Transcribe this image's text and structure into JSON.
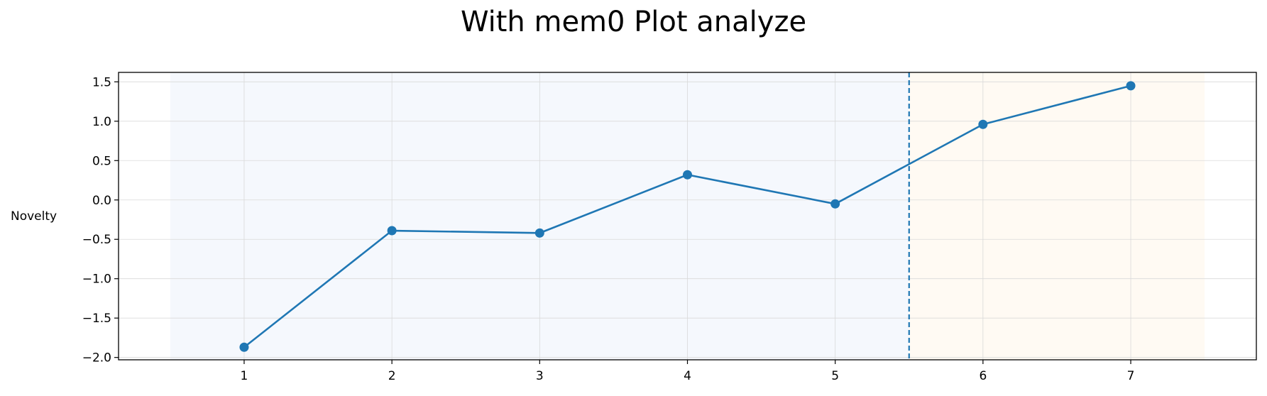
{
  "chart_data": {
    "type": "line",
    "title": "With mem0 Plot analyze",
    "xlabel": "",
    "ylabel": "Novelty",
    "x": [
      1,
      2,
      3,
      4,
      5,
      6,
      7
    ],
    "series": [
      {
        "values": [
          -1.87,
          -0.39,
          -0.42,
          0.32,
          -0.05,
          0.96,
          1.45
        ],
        "color": "#1f77b4"
      }
    ],
    "xlim": [
      0.15,
      7.85
    ],
    "ylim": [
      -2.03,
      1.62
    ],
    "xticks": [
      1,
      2,
      3,
      4,
      5,
      6,
      7
    ],
    "yticks": [
      1.5,
      1.0,
      0.5,
      0.0,
      -0.5,
      -1.0,
      -1.5,
      -2.0
    ],
    "ytick_labels": [
      "1.5",
      "1.0",
      "0.5",
      "0.0",
      "−0.5",
      "−1.0",
      "−1.5",
      "−2.0"
    ],
    "shaded_regions": [
      {
        "x_start": 0.5,
        "x_end": 5.5,
        "color": "#f5f8fd"
      },
      {
        "x_start": 5.5,
        "x_end": 7.5,
        "color": "#fffaf3"
      }
    ],
    "vline": {
      "x": 5.5,
      "style": "dashed",
      "color": "#1f77b4"
    },
    "grid": true,
    "legend": "none"
  }
}
